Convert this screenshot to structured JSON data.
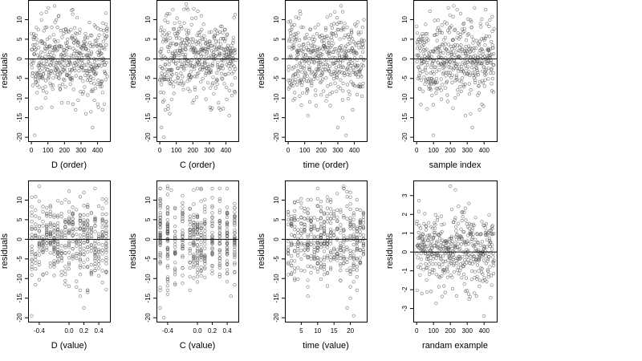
{
  "chart_data": [
    {
      "type": "scatter",
      "xlabel": "D (order)",
      "ylabel": "residuals",
      "x_ticks": [
        0,
        100,
        200,
        300,
        400
      ],
      "y_ticks": [
        -20,
        -15,
        -10,
        -5,
        0,
        5,
        10
      ],
      "xlim": [
        -20,
        475
      ],
      "ylim": [
        -21,
        15
      ],
      "reference_line_y": 0,
      "points": {
        "dist": "order",
        "n": 460,
        "sd": 5,
        "seed": 11,
        "outliers": [
          [
            20,
            -19.5
          ],
          [
            60,
            -12.5
          ],
          [
            330,
            -14
          ],
          [
            360,
            -13.5
          ],
          [
            370,
            -17.5
          ],
          [
            140,
            13.5
          ],
          [
            250,
            12.5
          ]
        ]
      }
    },
    {
      "type": "scatter",
      "xlabel": "C (order)",
      "ylabel": "residuals",
      "x_ticks": [
        0,
        100,
        200,
        300,
        400
      ],
      "y_ticks": [
        -20,
        -15,
        -10,
        -5,
        0,
        5,
        10
      ],
      "xlim": [
        -20,
        475
      ],
      "ylim": [
        -21,
        15
      ],
      "reference_line_y": 0,
      "points": {
        "dist": "order",
        "n": 460,
        "sd": 5,
        "seed": 23,
        "outliers": [
          [
            10,
            -17.5
          ],
          [
            25,
            -20
          ],
          [
            60,
            -14
          ],
          [
            50,
            -12
          ],
          [
            420,
            -14.5
          ],
          [
            160,
            14
          ],
          [
            170,
            12.5
          ]
        ]
      }
    },
    {
      "type": "scatter",
      "xlabel": "time (order)",
      "ylabel": "residuals",
      "x_ticks": [
        0,
        100,
        200,
        300,
        400
      ],
      "y_ticks": [
        -20,
        -15,
        -10,
        -5,
        0,
        5,
        10
      ],
      "xlim": [
        -20,
        475
      ],
      "ylim": [
        -21,
        15
      ],
      "reference_line_y": 0,
      "points": {
        "dist": "order",
        "n": 460,
        "sd": 5,
        "seed": 37,
        "outliers": [
          [
            300,
            -17.5
          ],
          [
            330,
            -15
          ],
          [
            350,
            -19.5
          ],
          [
            120,
            -14.5
          ],
          [
            320,
            13.5
          ],
          [
            330,
            12
          ]
        ]
      }
    },
    {
      "type": "scatter",
      "xlabel": "sample index",
      "ylabel": "residuals",
      "x_ticks": [
        0,
        100,
        200,
        300,
        400
      ],
      "y_ticks": [
        -20,
        -15,
        -10,
        -5,
        0,
        5,
        10
      ],
      "xlim": [
        -20,
        475
      ],
      "ylim": [
        -21,
        15
      ],
      "reference_line_y": 0,
      "points": {
        "dist": "order",
        "n": 460,
        "sd": 5,
        "seed": 41,
        "outliers": [
          [
            100,
            -19.5
          ],
          [
            320,
            -14
          ],
          [
            330,
            -17.5
          ],
          [
            290,
            -14.5
          ],
          [
            220,
            13.5
          ],
          [
            240,
            12.5
          ]
        ]
      }
    },
    {
      "type": "scatter",
      "xlabel": "D (value)",
      "ylabel": "residuals",
      "x_ticks": [
        -0.4,
        0.0,
        0.2,
        0.4
      ],
      "x_tick_labels": [
        "-0.4",
        "0.0",
        "0.2",
        "0.4"
      ],
      "y_ticks": [
        -20,
        -15,
        -10,
        -5,
        0,
        5,
        10
      ],
      "xlim": [
        -0.55,
        0.55
      ],
      "ylim": [
        -21,
        15
      ],
      "reference_line_y": 0,
      "points": {
        "dist": "discrete",
        "n": 460,
        "sd": 5,
        "seed": 53,
        "levels": [
          -0.5,
          -0.45,
          -0.4,
          -0.35,
          -0.3,
          -0.25,
          -0.2,
          -0.15,
          -0.1,
          -0.05,
          0.0,
          0.05,
          0.1,
          0.15,
          0.2,
          0.25,
          0.3,
          0.35,
          0.4,
          0.45,
          0.5
        ],
        "outliers": [
          [
            -0.5,
            -19.5
          ],
          [
            0.15,
            -14.5
          ],
          [
            0.25,
            -13.5
          ],
          [
            0.2,
            -17.5
          ],
          [
            -0.4,
            13.5
          ]
        ]
      }
    },
    {
      "type": "scatter",
      "xlabel": "C (value)",
      "ylabel": "residuals",
      "x_ticks": [
        -0.4,
        0.0,
        0.2,
        0.4
      ],
      "x_tick_labels": [
        "-0.4",
        "0.0",
        "0.2",
        "0.4"
      ],
      "y_ticks": [
        -20,
        -15,
        -10,
        -5,
        0,
        5,
        10
      ],
      "xlim": [
        -0.55,
        0.55
      ],
      "ylim": [
        -21,
        15
      ],
      "reference_line_y": 0,
      "points": {
        "dist": "discrete",
        "n": 460,
        "sd": 5,
        "seed": 67,
        "levels": [
          -0.5,
          -0.4,
          -0.3,
          -0.2,
          -0.1,
          -0.05,
          0.0,
          0.05,
          0.1,
          0.2,
          0.3,
          0.4,
          0.5
        ],
        "outliers": [
          [
            -0.5,
            -17.5
          ],
          [
            -0.45,
            -20
          ],
          [
            -0.4,
            -14
          ],
          [
            0.45,
            -14.5
          ],
          [
            -0.4,
            13.5
          ],
          [
            -0.35,
            12.5
          ]
        ]
      }
    },
    {
      "type": "scatter",
      "xlabel": "time (value)",
      "ylabel": "residuals",
      "x_ticks": [
        5,
        10,
        15,
        20
      ],
      "y_ticks": [
        -20,
        -15,
        -10,
        -5,
        0,
        5,
        10
      ],
      "xlim": [
        0,
        25
      ],
      "ylim": [
        -21,
        15
      ],
      "reference_line_y": 0,
      "points": {
        "dist": "discrete",
        "n": 460,
        "sd": 5,
        "seed": 79,
        "levels": [
          1,
          2,
          3,
          4,
          5,
          6,
          7,
          8,
          9,
          10,
          11,
          12,
          13,
          14,
          15,
          16,
          17,
          18,
          19,
          20,
          21,
          22,
          23,
          24
        ],
        "outliers": [
          [
            19,
            -17.5
          ],
          [
            20,
            -15
          ],
          [
            21,
            -19.5
          ],
          [
            7,
            -14.5
          ],
          [
            18,
            13.5
          ],
          [
            20,
            12
          ]
        ]
      }
    },
    {
      "type": "scatter",
      "xlabel": "randam example",
      "ylabel": "residuals",
      "x_ticks": [
        0,
        100,
        200,
        300,
        400
      ],
      "y_ticks": [
        -3,
        -2,
        -1,
        0,
        1,
        2,
        3
      ],
      "xlim": [
        -20,
        475
      ],
      "ylim": [
        -3.7,
        3.8
      ],
      "reference_line_y": 0,
      "points": {
        "dist": "order",
        "n": 460,
        "sd": 1.05,
        "seed": 97,
        "outliers": [
          [
            200,
            3.5
          ],
          [
            230,
            3.3
          ],
          [
            400,
            -3.4
          ]
        ]
      }
    }
  ],
  "colors": {
    "points": "#555555",
    "frame": "#000000",
    "reference_line": "#000000",
    "background": "#ffffff"
  }
}
